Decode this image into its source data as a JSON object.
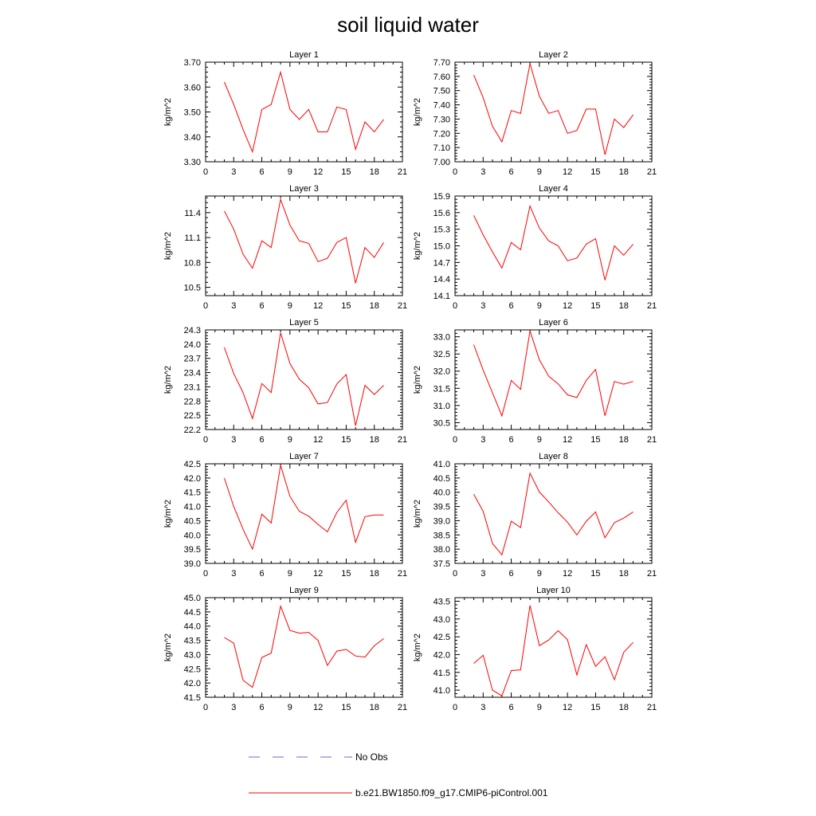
{
  "title": "soil liquid water",
  "colors": {
    "series": "#ff0000",
    "obs": "#6a6ad8",
    "axis": "#000000"
  },
  "legend": [
    {
      "label": "No Obs",
      "style": "dashed",
      "color": "#6a6ad8"
    },
    {
      "label": "b.e21.BW1850.f09_g17.CMIP6-piControl.001",
      "style": "solid",
      "color": "#ff0000"
    }
  ],
  "chart_data": [
    {
      "type": "line",
      "title": "Layer 1",
      "ylabel": "kg/m^2",
      "xlim": [
        0,
        21
      ],
      "xticks": [
        0,
        3,
        6,
        9,
        12,
        15,
        18,
        21
      ],
      "ylim": [
        3.3,
        3.7
      ],
      "yticks": [
        "3.30",
        "3.40",
        "3.50",
        "3.60",
        "3.70"
      ],
      "x": [
        2,
        3,
        4,
        5,
        6,
        7,
        8,
        9,
        10,
        11,
        12,
        13,
        14,
        15,
        16,
        17,
        18,
        19
      ],
      "values": [
        3.62,
        3.53,
        3.43,
        3.34,
        3.51,
        3.53,
        3.66,
        3.51,
        3.47,
        3.51,
        3.42,
        3.42,
        3.52,
        3.51,
        3.35,
        3.46,
        3.42,
        3.47
      ]
    },
    {
      "type": "line",
      "title": "Layer 2",
      "ylabel": "kg/m^2",
      "xlim": [
        0,
        21
      ],
      "xticks": [
        0,
        3,
        6,
        9,
        12,
        15,
        18,
        21
      ],
      "ylim": [
        7.0,
        7.7
      ],
      "yticks": [
        "7.00",
        "7.10",
        "7.20",
        "7.30",
        "7.40",
        "7.50",
        "7.60",
        "7.70"
      ],
      "x": [
        2,
        3,
        4,
        5,
        6,
        7,
        8,
        9,
        10,
        11,
        12,
        13,
        14,
        15,
        16,
        17,
        18,
        19
      ],
      "values": [
        7.61,
        7.45,
        7.25,
        7.14,
        7.36,
        7.34,
        7.69,
        7.46,
        7.34,
        7.36,
        7.2,
        7.22,
        7.37,
        7.37,
        7.05,
        7.3,
        7.24,
        7.33
      ]
    },
    {
      "type": "line",
      "title": "Layer 3",
      "ylabel": "kg/m^2",
      "xlim": [
        0,
        21
      ],
      "xticks": [
        0,
        3,
        6,
        9,
        12,
        15,
        18,
        21
      ],
      "ylim": [
        10.4,
        11.6
      ],
      "yticks": [
        "10.5",
        "10.8",
        "11.1",
        "11.4"
      ],
      "x": [
        2,
        3,
        4,
        5,
        6,
        7,
        8,
        9,
        10,
        11,
        12,
        13,
        14,
        15,
        16,
        17,
        18,
        19
      ],
      "values": [
        11.42,
        11.2,
        10.9,
        10.73,
        11.06,
        10.98,
        11.56,
        11.25,
        11.06,
        11.03,
        10.81,
        10.85,
        11.04,
        11.1,
        10.55,
        10.98,
        10.86,
        11.04
      ]
    },
    {
      "type": "line",
      "title": "Layer 4",
      "ylabel": "kg/m^2",
      "xlim": [
        0,
        21
      ],
      "xticks": [
        0,
        3,
        6,
        9,
        12,
        15,
        18,
        21
      ],
      "ylim": [
        14.1,
        15.9
      ],
      "yticks": [
        "14.1",
        "14.4",
        "14.7",
        "15.0",
        "15.3",
        "15.6",
        "15.9"
      ],
      "x": [
        2,
        3,
        4,
        5,
        6,
        7,
        8,
        9,
        10,
        11,
        12,
        13,
        14,
        15,
        16,
        17,
        18,
        19
      ],
      "values": [
        15.55,
        15.2,
        14.89,
        14.6,
        15.06,
        14.93,
        15.72,
        15.32,
        15.09,
        15.0,
        14.73,
        14.78,
        15.03,
        15.13,
        14.38,
        15.0,
        14.83,
        15.03
      ]
    },
    {
      "type": "line",
      "title": "Layer 5",
      "ylabel": "kg/m^2",
      "xlim": [
        0,
        21
      ],
      "xticks": [
        0,
        3,
        6,
        9,
        12,
        15,
        18,
        21
      ],
      "ylim": [
        22.2,
        24.3
      ],
      "yticks": [
        "22.2",
        "22.5",
        "22.8",
        "23.1",
        "23.4",
        "23.7",
        "24.0",
        "24.3"
      ],
      "x": [
        2,
        3,
        4,
        5,
        6,
        7,
        8,
        9,
        10,
        11,
        12,
        13,
        14,
        15,
        16,
        17,
        18,
        19
      ],
      "values": [
        23.93,
        23.38,
        22.98,
        22.43,
        23.17,
        22.98,
        24.24,
        23.59,
        23.26,
        23.08,
        22.74,
        22.77,
        23.16,
        23.36,
        22.28,
        23.13,
        22.94,
        23.13
      ]
    },
    {
      "type": "line",
      "title": "Layer 6",
      "ylabel": "kg/m^2",
      "xlim": [
        0,
        21
      ],
      "xticks": [
        0,
        3,
        6,
        9,
        12,
        15,
        18,
        21
      ],
      "ylim": [
        30.3,
        33.2
      ],
      "yticks": [
        "30.5",
        "31.0",
        "31.5",
        "32.0",
        "32.5",
        "33.0"
      ],
      "x": [
        2,
        3,
        4,
        5,
        6,
        7,
        8,
        9,
        10,
        11,
        12,
        13,
        14,
        15,
        16,
        17,
        18,
        19
      ],
      "values": [
        32.77,
        32.03,
        31.37,
        30.7,
        31.73,
        31.47,
        33.17,
        32.33,
        31.85,
        31.63,
        31.31,
        31.23,
        31.73,
        32.05,
        30.7,
        31.7,
        31.62,
        31.7
      ]
    },
    {
      "type": "line",
      "title": "Layer 7",
      "ylabel": "kg/m^2",
      "xlim": [
        0,
        21
      ],
      "xticks": [
        0,
        3,
        6,
        9,
        12,
        15,
        18,
        21
      ],
      "ylim": [
        39.0,
        42.5
      ],
      "yticks": [
        "39.0",
        "39.5",
        "40.0",
        "40.5",
        "41.0",
        "41.5",
        "42.0",
        "42.5"
      ],
      "x": [
        2,
        3,
        4,
        5,
        6,
        7,
        8,
        9,
        10,
        11,
        12,
        13,
        14,
        15,
        16,
        17,
        18,
        19
      ],
      "values": [
        42.0,
        41.0,
        40.2,
        39.5,
        40.73,
        40.42,
        42.45,
        41.35,
        40.83,
        40.66,
        40.37,
        40.11,
        40.79,
        41.22,
        39.74,
        40.64,
        40.7,
        40.7
      ]
    },
    {
      "type": "line",
      "title": "Layer 8",
      "ylabel": "kg/m^2",
      "xlim": [
        0,
        21
      ],
      "xticks": [
        0,
        3,
        6,
        9,
        12,
        15,
        18,
        21
      ],
      "ylim": [
        37.5,
        41.0
      ],
      "yticks": [
        "37.5",
        "38.0",
        "38.5",
        "39.0",
        "39.5",
        "40.0",
        "40.5",
        "41.0"
      ],
      "x": [
        2,
        3,
        4,
        5,
        6,
        7,
        8,
        9,
        10,
        11,
        12,
        13,
        14,
        15,
        16,
        17,
        18,
        19
      ],
      "values": [
        39.93,
        39.33,
        38.2,
        37.8,
        38.98,
        38.76,
        40.67,
        40.01,
        39.66,
        39.28,
        38.95,
        38.5,
        38.98,
        39.31,
        38.4,
        38.93,
        39.09,
        39.31
      ]
    },
    {
      "type": "line",
      "title": "Layer 9",
      "ylabel": "kg/m^2",
      "xlim": [
        0,
        21
      ],
      "xticks": [
        0,
        3,
        6,
        9,
        12,
        15,
        18,
        21
      ],
      "ylim": [
        41.5,
        45.0
      ],
      "yticks": [
        "41.5",
        "42.0",
        "42.5",
        "43.0",
        "43.5",
        "44.0",
        "44.5",
        "45.0"
      ],
      "x": [
        2,
        3,
        4,
        5,
        6,
        7,
        8,
        9,
        10,
        11,
        12,
        13,
        14,
        15,
        16,
        17,
        18,
        19
      ],
      "values": [
        43.6,
        43.4,
        42.1,
        41.85,
        42.9,
        43.05,
        44.7,
        43.85,
        43.75,
        43.78,
        43.5,
        42.62,
        43.12,
        43.18,
        42.95,
        42.91,
        43.31,
        43.56
      ]
    },
    {
      "type": "line",
      "title": "Layer 10",
      "ylabel": "kg/m^2",
      "xlim": [
        0,
        21
      ],
      "xticks": [
        0,
        3,
        6,
        9,
        12,
        15,
        18,
        21
      ],
      "ylim": [
        40.8,
        43.6
      ],
      "yticks": [
        "41.0",
        "41.5",
        "42.0",
        "42.5",
        "43.0",
        "43.5"
      ],
      "x": [
        2,
        3,
        4,
        5,
        6,
        7,
        8,
        9,
        10,
        11,
        12,
        13,
        14,
        15,
        16,
        17,
        18,
        19
      ],
      "values": [
        41.75,
        41.98,
        41.0,
        40.84,
        41.55,
        41.57,
        43.38,
        42.25,
        42.41,
        42.67,
        42.42,
        41.43,
        42.28,
        41.67,
        41.94,
        41.29,
        42.06,
        42.34
      ]
    }
  ]
}
